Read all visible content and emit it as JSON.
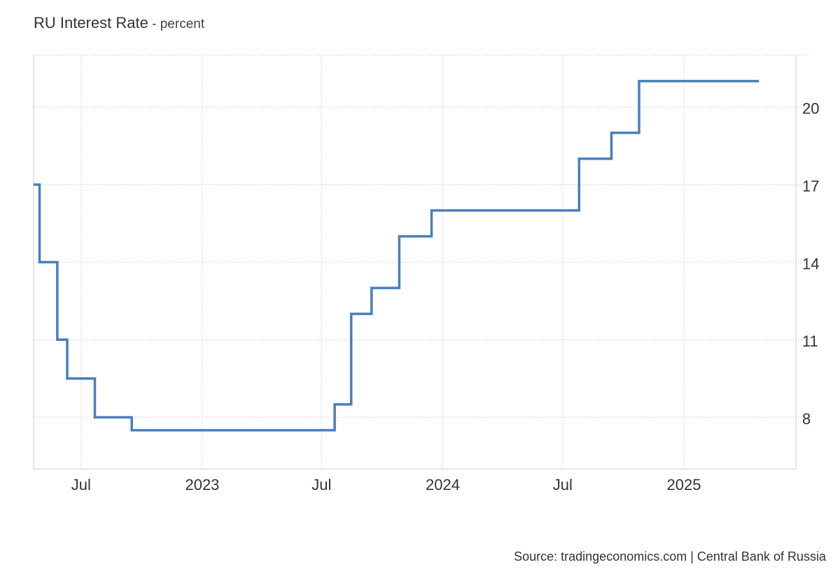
{
  "title": "RU Interest Rate",
  "subtitle_sep": " - ",
  "subtitle": "percent",
  "source": "Source: tradingeconomics.com | Central Bank of Russia",
  "colors": {
    "series": "#4a7ebb",
    "grid": "#d4d4d4",
    "axis": "#cccccc"
  },
  "chart_data": {
    "type": "line",
    "step": true,
    "title": "RU Interest Rate",
    "ylabel": "percent",
    "ylim": [
      6,
      22
    ],
    "xlim": [
      "2022-04-20",
      "2025-06-20"
    ],
    "y_axis_side": "right",
    "grid": true,
    "y_ticks": [
      8,
      11,
      14,
      17,
      20
    ],
    "x_ticks": [
      {
        "date": "2022-07-01",
        "label": "Jul"
      },
      {
        "date": "2023-01-01",
        "label": "2023"
      },
      {
        "date": "2023-07-01",
        "label": "Jul"
      },
      {
        "date": "2024-01-01",
        "label": "2024"
      },
      {
        "date": "2024-07-01",
        "label": "Jul"
      },
      {
        "date": "2025-01-01",
        "label": "2025"
      }
    ],
    "series": [
      {
        "x": [
          "2022-04-20",
          "2022-04-29",
          "2022-05-26",
          "2022-06-10",
          "2022-07-22",
          "2022-09-16",
          "2023-07-21",
          "2023-08-15",
          "2023-09-15",
          "2023-10-27",
          "2023-12-15",
          "2024-07-26",
          "2024-09-13",
          "2024-10-25",
          "2025-04-25"
        ],
        "values": [
          17,
          14,
          11,
          9.5,
          8,
          7.5,
          8.5,
          12,
          13,
          15,
          16,
          18,
          19,
          21,
          21
        ]
      }
    ]
  }
}
